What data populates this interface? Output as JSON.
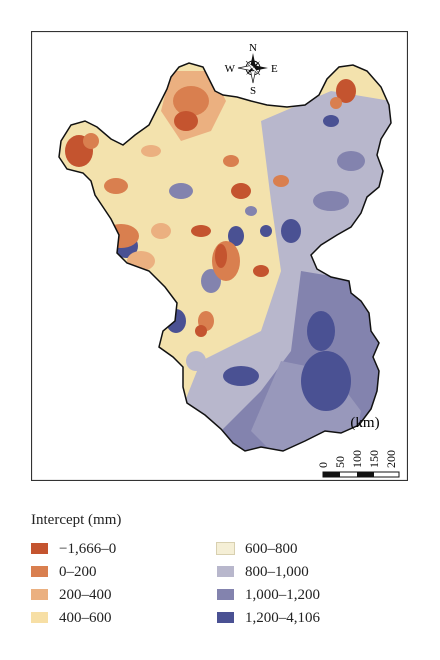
{
  "compass": {
    "north": "N",
    "south": "S",
    "east": "E",
    "west": "W"
  },
  "scale": {
    "unit": "(km)",
    "ticks": [
      "0",
      "50",
      "100",
      "150",
      "200"
    ]
  },
  "legend": {
    "title": "Intercept (mm)",
    "classes": [
      {
        "label": "−1,666–0",
        "color": "#c4542f"
      },
      {
        "label": "0–200",
        "color": "#d97f4f"
      },
      {
        "label": "200–400",
        "color": "#ebb080"
      },
      {
        "label": "400–600",
        "color": "#f7dfa5"
      },
      {
        "label": "600–800",
        "color": "#f5efd6"
      },
      {
        "label": "800–1,000",
        "color": "#b8b7cc"
      },
      {
        "label": "1,000–1,200",
        "color": "#8383ae"
      },
      {
        "label": "1,200–4,106",
        "color": "#4a5193"
      }
    ]
  }
}
